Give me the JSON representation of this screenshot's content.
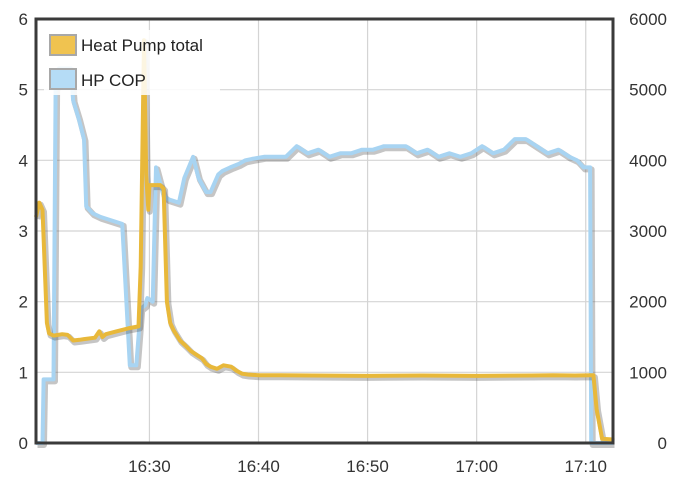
{
  "chart_data": {
    "type": "line",
    "x_tick_labels": [
      "16:30",
      "16:40",
      "16:50",
      "17:00",
      "17:10"
    ],
    "x_tick_minutes": [
      30,
      40,
      50,
      60,
      70
    ],
    "xlim": [
      19.6,
      72.5
    ],
    "ylim_left": [
      0,
      6
    ],
    "ylim_right": [
      0,
      6000
    ],
    "left_ticks": [
      0,
      1,
      2,
      3,
      4,
      5,
      6
    ],
    "right_ticks": [
      0,
      1000,
      2000,
      3000,
      4000,
      5000,
      6000
    ],
    "grid": true,
    "legend_position": "top-left",
    "series": [
      {
        "name": "Heat Pump total",
        "color": "#e8b83a",
        "axis": "right",
        "x": [
          19.6,
          19.9,
          20.2,
          20.4,
          20.6,
          20.8,
          21.2,
          22,
          22.5,
          23,
          23.6,
          24,
          25,
          25.4,
          25.7,
          26,
          27,
          28,
          29,
          29.2,
          29.5,
          29.7,
          29.9,
          30,
          30.5,
          31,
          31.3,
          31.6,
          31.9,
          32.2,
          32.8,
          33.3,
          33.8,
          34.3,
          34.8,
          35.2,
          35.6,
          36.2,
          36.8,
          37.5,
          38,
          38.5,
          39,
          40,
          42,
          45,
          50,
          55,
          60,
          65,
          67,
          69,
          70.5,
          70.7,
          71,
          71.5,
          72.5
        ],
        "values": [
          3200,
          3400,
          3300,
          2500,
          1700,
          1550,
          1520,
          1540,
          1530,
          1450,
          1460,
          1470,
          1490,
          1580,
          1500,
          1540,
          1580,
          1620,
          1650,
          2500,
          5700,
          3800,
          3300,
          3650,
          3650,
          3650,
          3600,
          2000,
          1700,
          1600,
          1450,
          1380,
          1300,
          1250,
          1200,
          1120,
          1080,
          1050,
          1100,
          1080,
          1020,
          980,
          970,
          960,
          960,
          955,
          950,
          955,
          950,
          955,
          960,
          955,
          960,
          960,
          480,
          60,
          50
        ]
      },
      {
        "name": "HP COP",
        "color": "#a8d4f2",
        "axis": "left",
        "x": [
          19.6,
          20.2,
          20.3,
          21.2,
          21.4,
          21.7,
          22.8,
          23,
          23.5,
          24,
          24.2,
          24.8,
          25.5,
          26.5,
          27.5,
          28.2,
          28.8,
          29.2,
          29.6,
          29.8,
          30.3,
          30.6,
          31.3,
          31.7,
          32.7,
          33.2,
          34,
          34.5,
          35.2,
          35.6,
          36.3,
          36.7,
          37.4,
          38.2,
          38.8,
          39.4,
          40.5,
          41.5,
          42.5,
          43.5,
          44.5,
          45.5,
          46.5,
          47.5,
          48.5,
          49.5,
          50.5,
          51.5,
          52.5,
          53.5,
          54.5,
          55.5,
          56.5,
          57.5,
          58.5,
          59.5,
          60.5,
          61.5,
          62.5,
          63.5,
          64.5,
          65.5,
          66.5,
          67.5,
          68.5,
          69.2,
          69.8,
          70.4,
          70.5,
          72.5
        ],
        "values": [
          0,
          0,
          0.9,
          0.9,
          5.0,
          5.3,
          5.3,
          4.85,
          4.6,
          4.3,
          3.35,
          3.25,
          3.2,
          3.15,
          3.1,
          1.1,
          1.1,
          1.9,
          1.95,
          2.05,
          2.0,
          3.9,
          3.5,
          3.45,
          3.4,
          3.75,
          4.05,
          3.75,
          3.55,
          3.55,
          3.8,
          3.85,
          3.9,
          3.95,
          4.0,
          4.02,
          4.05,
          4.05,
          4.05,
          4.2,
          4.1,
          4.15,
          4.05,
          4.1,
          4.1,
          4.15,
          4.15,
          4.2,
          4.2,
          4.2,
          4.1,
          4.15,
          4.05,
          4.1,
          4.05,
          4.1,
          4.2,
          4.1,
          4.15,
          4.3,
          4.3,
          4.2,
          4.1,
          4.15,
          4.05,
          4.0,
          3.9,
          3.9,
          0,
          0
        ]
      }
    ]
  }
}
